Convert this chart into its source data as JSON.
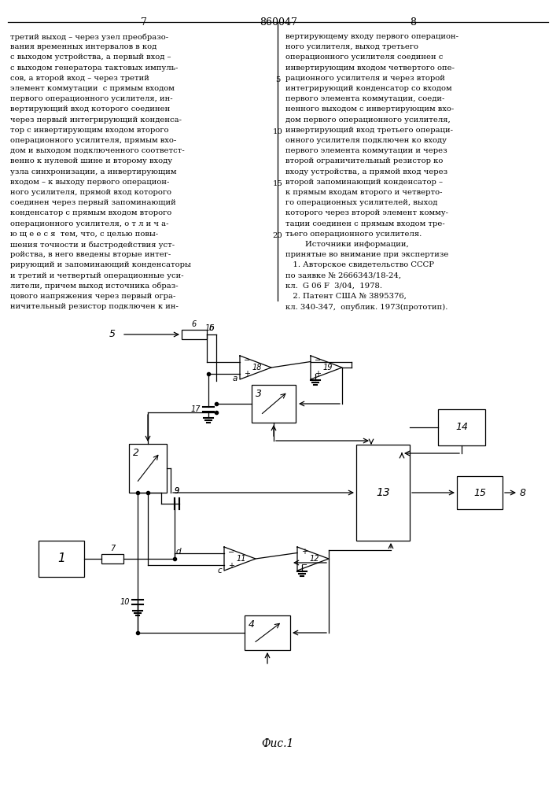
{
  "page_number_left": "7",
  "patent_number": "860047",
  "page_number_right": "8",
  "fig_label": "Фис.1",
  "background_color": "#ffffff",
  "text_color": "#000000",
  "text_left": [
    "третий выход – через узел преобразо-",
    "вания временных интервалов в код",
    "с выходом устройства, а первый вход –",
    "с выходом генератора тактовых импуль-",
    "сов, а второй вход – через третий",
    "элемент коммутации  с прямым входом",
    "первого операционного усилителя, ин-",
    "вертирующий вход которого соединен",
    "через первый интегрирующий конденса-",
    "тор с инвертирующим входом второго",
    "операционного усилителя, прямым вхо-",
    "дом и выходом подключенного соответст-",
    "венно к нулевой шине и второму входу",
    "узла синхронизации, а инвертирующим",
    "входом – к выходу первого операцион-",
    "ного усилителя, прямой вход которого",
    "соединен через первый запоминающий",
    "конденсатор с прямым входом второго",
    "операционного усилителя, о т л и ч а-",
    "ю щ е е с я  тем, что, с целью повы-",
    "шения точности и быстродействия уст-",
    "ройства, в него введены вторые интег-",
    "рирующий и запоминающий конденсаторы",
    "и третий и четвертый операционные уси-",
    "лители, причем выход источника образ-",
    "цового напряжения через первый огра-",
    "ничительный резистор подключен к ин-"
  ],
  "text_right": [
    "вертирующему входу первого операцион-",
    "ного усилителя, выход третьего",
    "операционного усилителя соединен с",
    "инвертирующим входом четвертого опе-",
    "рационного усилителя и через второй",
    "интегрирующий конденсатор со входом",
    "первого элемента коммутации, соеди-",
    "ненного выходом с инвертирующим вхо-",
    "дом первого операционного усилителя,",
    "инвертирующий вход третьего операци-",
    "онного усилителя подключен ко входу",
    "первого элемента коммутации и через",
    "второй ограничительный резистор ко",
    "входу устройства, а прямой вход через",
    "второй запоминающий конденсатор –",
    "к прямым входам второго и четверто-",
    "го операционных усилителей, выход",
    "которого через второй элемент комму-",
    "тации соединен с прямым входом тре-",
    "тьего операционного усилителя.",
    "        Источники информации,",
    "принятые во внимание при экспертизе",
    "   1. Авторское свидетельство СССР",
    "по заявке № 2666343/18-24,",
    "кл.  G 06 F  3/04,  1978.",
    "   2. Патент США № 3895376,",
    "кл. 340-347,  опублик. 1973(прототип)."
  ]
}
